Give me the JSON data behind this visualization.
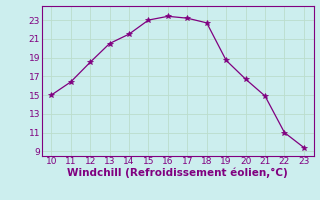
{
  "x": [
    10,
    11,
    12,
    13,
    14,
    15,
    16,
    17,
    18,
    19,
    20,
    21,
    22,
    23
  ],
  "y": [
    15.0,
    16.4,
    18.5,
    20.5,
    21.5,
    23.0,
    23.4,
    23.2,
    22.7,
    18.7,
    16.7,
    14.9,
    11.0,
    9.4
  ],
  "xlim": [
    9.5,
    23.5
  ],
  "ylim": [
    8.5,
    24.5
  ],
  "xticks": [
    10,
    11,
    12,
    13,
    14,
    15,
    16,
    17,
    18,
    19,
    20,
    21,
    22,
    23
  ],
  "yticks": [
    9,
    11,
    13,
    15,
    17,
    19,
    21,
    23
  ],
  "xlabel": "Windchill (Refroidissement éolien,°C)",
  "line_color": "#800080",
  "marker_color": "#800080",
  "bg_color": "#cceeee",
  "grid_color": "#bbddcc",
  "tick_label_color": "#800080",
  "axis_label_color": "#800080",
  "tick_fontsize": 6.5,
  "xlabel_fontsize": 7.5
}
